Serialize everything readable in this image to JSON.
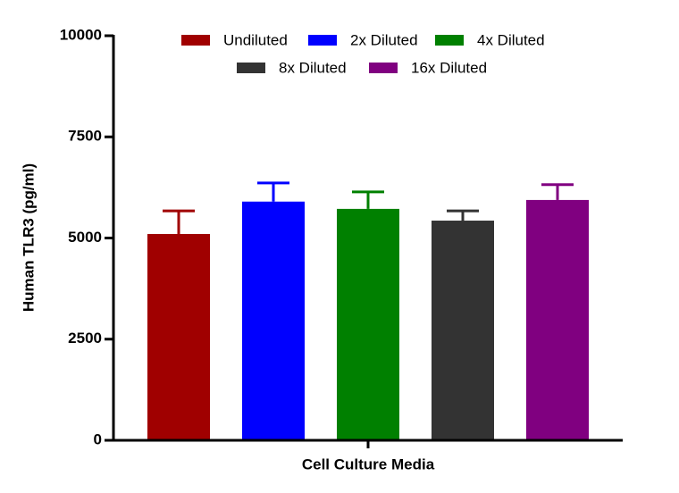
{
  "chart_data": {
    "type": "bar",
    "categories": [
      "Cell Culture Media"
    ],
    "xlabel": "Cell Culture Media",
    "ylabel": "Human TLR3 (pg/ml)",
    "ylim": [
      0,
      10000
    ],
    "yticks": [
      0,
      2500,
      5000,
      7500,
      10000
    ],
    "legend": "top",
    "series": [
      {
        "name": "Undiluted",
        "color": "#a00000",
        "values": [
          5100
        ],
        "errors": [
          570
        ]
      },
      {
        "name": "2x Diluted",
        "color": "#0000ff",
        "values": [
          5900
        ],
        "errors": [
          460
        ]
      },
      {
        "name": "4x Diluted",
        "color": "#008000",
        "values": [
          5720
        ],
        "errors": [
          420
        ]
      },
      {
        "name": "8x Diluted",
        "color": "#333333",
        "values": [
          5430
        ],
        "errors": [
          240
        ]
      },
      {
        "name": "16x Diluted",
        "color": "#800080",
        "values": [
          5940
        ],
        "errors": [
          380
        ]
      }
    ]
  }
}
